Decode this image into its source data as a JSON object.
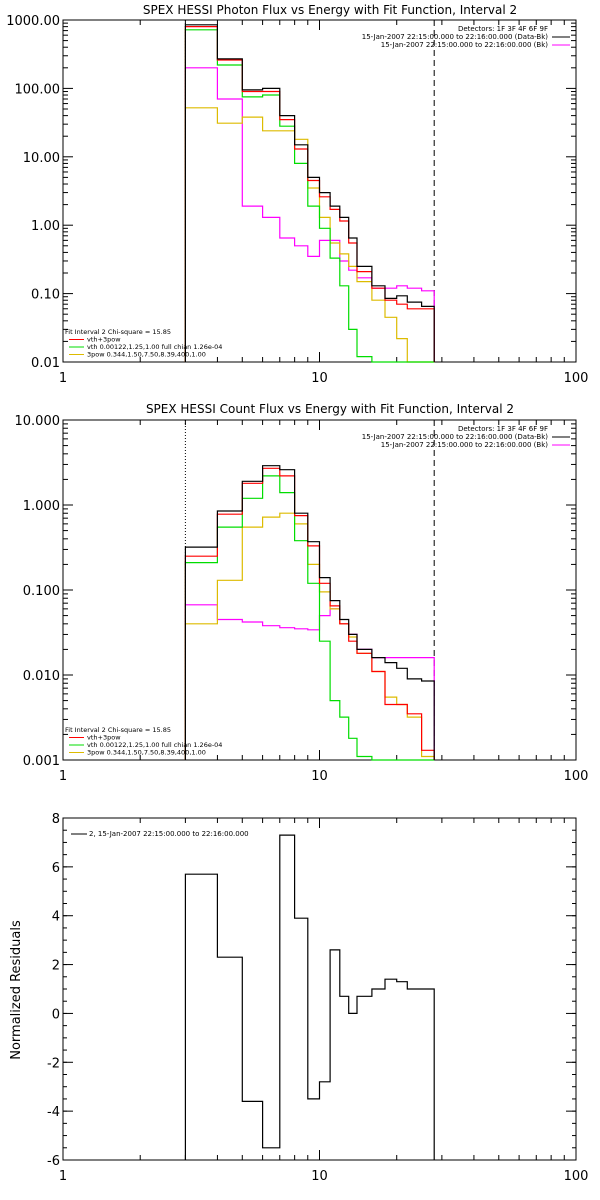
{
  "chart_data": [
    {
      "type": "line",
      "title": "SPEX HESSI Photon Flux vs Energy with Fit Function, Interval 2",
      "xscale": "log",
      "yscale": "log",
      "xlim": [
        1,
        100
      ],
      "ylim": [
        0.01,
        1000
      ],
      "x_ticks": [
        "1",
        "10",
        "100"
      ],
      "y_ticks": [
        "0.01",
        "0.10",
        "1.00",
        "10.00",
        "100.00",
        "1000.00"
      ],
      "legend_right": [
        "Detectors: 1F 3F 4F 6F 9F",
        "15-Jan-2007 22:15:00.000 to 22:16:00.000 (Data-Bk)",
        "15-Jan-2007 22:15:00.000 to 22:16:00.000 (Bk)"
      ],
      "legend_left": [
        "Fit Interval 2   Chi-square = 15.85",
        "vth+3pow",
        "vth 0.00122,1.25,1.00  full chian 1.26e-04",
        "3pow 0.344,1.50,7.50,8.39,400,1.00"
      ],
      "fit_range": [
        3,
        28
      ],
      "energy_edges": [
        3.0,
        4.0,
        5.0,
        6.0,
        7.0,
        8.0,
        9.0,
        10.0,
        11.0,
        12.0,
        13.0,
        14.0,
        16.0,
        18.0,
        20.0,
        22.0,
        25.0,
        28.0
      ],
      "series": [
        {
          "name": "data",
          "color": "#000000",
          "values": [
            850,
            270,
            95,
            100,
            40,
            15,
            5.0,
            3.0,
            1.9,
            1.3,
            0.65,
            0.25,
            0.13,
            0.085,
            0.093,
            0.075,
            0.065
          ]
        },
        {
          "name": "vth+3pow",
          "color": "#ff0000",
          "values": [
            800,
            260,
            90,
            90,
            35,
            13,
            4.5,
            2.6,
            1.7,
            1.15,
            0.55,
            0.21,
            0.12,
            0.08,
            0.07,
            0.06,
            0.06
          ]
        },
        {
          "name": "vth",
          "color": "#00dd00",
          "values": [
            720,
            220,
            75,
            80,
            28,
            8,
            1.9,
            0.9,
            0.33,
            0.13,
            0.03,
            0.012,
            0.0,
            0.0,
            0.0,
            0.0,
            0.0
          ]
        },
        {
          "name": "3pow",
          "color": "#ddbb00",
          "values": [
            52,
            31,
            38,
            24,
            24,
            18,
            3.5,
            1.3,
            0.55,
            0.38,
            0.25,
            0.15,
            0.08,
            0.045,
            0.022,
            0.01,
            0.0
          ]
        },
        {
          "name": "background",
          "color": "#ff00ff",
          "values": [
            200,
            70,
            1.9,
            1.3,
            0.65,
            0.5,
            0.35,
            0.6,
            0.6,
            0.3,
            0.22,
            0.17,
            0.12,
            0.12,
            0.13,
            0.12,
            0.11
          ]
        }
      ]
    },
    {
      "type": "line",
      "title": "SPEX HESSI Count Flux vs Energy with Fit Function, Interval 2",
      "xscale": "log",
      "yscale": "log",
      "xlim": [
        1,
        100
      ],
      "ylim": [
        0.001,
        10
      ],
      "x_ticks": [
        "1",
        "10",
        "100"
      ],
      "y_ticks": [
        "0.001",
        "0.010",
        "0.100",
        "1.000",
        "10.000"
      ],
      "legend_right": [
        "Detectors: 1F 3F 4F 6F 9F",
        "15-Jan-2007 22:15:00.000 to 22:16:00.000 (Data-Bk)",
        "15-Jan-2007 22:15:00.000 to 22:16:00.000 (Bk)"
      ],
      "legend_left": [
        "Fit Interval 2   Chi-square = 15.85",
        "vth+3pow",
        "vth 0.00122,1.25,1.00  full chian 1.26e-04",
        "3pow 0.344,1.50,7.50,8.39,400,1.00"
      ],
      "fit_range": [
        3,
        28
      ],
      "energy_edges": [
        3.0,
        4.0,
        5.0,
        6.0,
        7.0,
        8.0,
        9.0,
        10.0,
        11.0,
        12.0,
        13.0,
        14.0,
        16.0,
        18.0,
        20.0,
        22.0,
        25.0,
        28.0
      ],
      "series": [
        {
          "name": "data",
          "color": "#000000",
          "values": [
            0.32,
            0.85,
            1.9,
            2.9,
            2.6,
            0.8,
            0.37,
            0.14,
            0.075,
            0.045,
            0.03,
            0.02,
            0.016,
            0.014,
            0.012,
            0.009,
            0.0085
          ]
        },
        {
          "name": "vth+3pow",
          "color": "#ff0000",
          "values": [
            0.25,
            0.78,
            1.8,
            2.7,
            2.2,
            0.75,
            0.33,
            0.12,
            0.065,
            0.04,
            0.025,
            0.018,
            0.011,
            0.0045,
            0.0045,
            0.0035,
            0.0013
          ]
        },
        {
          "name": "vth",
          "color": "#00dd00",
          "values": [
            0.21,
            0.55,
            1.2,
            2.2,
            1.4,
            0.38,
            0.12,
            0.025,
            0.005,
            0.0032,
            0.0018,
            0.0011,
            0.0005,
            0.0,
            0.0,
            0.0,
            0.0
          ]
        },
        {
          "name": "3pow",
          "color": "#ddbb00",
          "values": [
            0.04,
            0.13,
            0.55,
            0.72,
            0.8,
            0.6,
            0.2,
            0.095,
            0.06,
            0.04,
            0.028,
            0.018,
            0.011,
            0.0055,
            0.0045,
            0.0032,
            0.0011
          ]
        },
        {
          "name": "background",
          "color": "#ff00ff",
          "values": [
            0.067,
            0.045,
            0.042,
            0.038,
            0.036,
            0.035,
            0.034,
            0.05,
            0.06,
            0.04,
            0.03,
            0.02,
            0.016,
            0.016,
            0.016,
            0.016,
            0.016
          ]
        }
      ]
    },
    {
      "type": "line",
      "title": "",
      "xscale": "log",
      "yscale": "linear",
      "xlim": [
        1,
        100
      ],
      "ylim": [
        -6,
        8
      ],
      "ylabel": "Normalized Residuals",
      "x_ticks": [
        "1",
        "10",
        "100"
      ],
      "y_ticks": [
        "-6",
        "-4",
        "-2",
        "0",
        "2",
        "4",
        "6",
        "8"
      ],
      "legend_left": [
        "2, 15-Jan-2007 22:15:00.000 to 22:16:00.000"
      ],
      "energy_edges": [
        3.0,
        4.0,
        5.0,
        6.0,
        7.0,
        8.0,
        9.0,
        10.0,
        11.0,
        12.0,
        13.0,
        14.0,
        16.0,
        18.0,
        20.0,
        22.0,
        25.0,
        28.0
      ],
      "series": [
        {
          "name": "2, 15-Jan-2007 22:15:00.000 to 22:16:00.000",
          "color": "#000000",
          "values": [
            5.7,
            2.3,
            -3.6,
            -5.5,
            7.3,
            3.9,
            -3.5,
            -2.8,
            2.6,
            0.7,
            0.0,
            0.7,
            1.0,
            1.4,
            1.3,
            1.0,
            1.0
          ]
        }
      ]
    }
  ]
}
